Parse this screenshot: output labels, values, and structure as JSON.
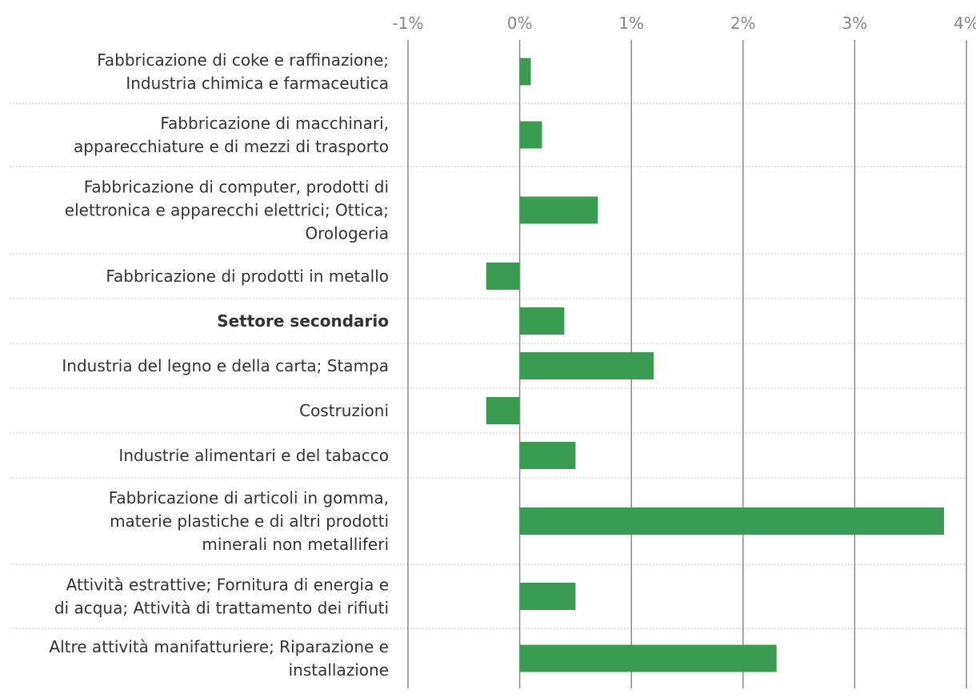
{
  "chart_data": {
    "type": "bar",
    "orientation": "horizontal",
    "bar_color": "#3a9c50",
    "xlim": [
      -1,
      4
    ],
    "ticks": [
      {
        "value": -1,
        "label": "-1%"
      },
      {
        "value": 0,
        "label": "0%"
      },
      {
        "value": 1,
        "label": "1%"
      },
      {
        "value": 2,
        "label": "2%"
      },
      {
        "value": 3,
        "label": "3%"
      },
      {
        "value": 4,
        "label": "4%"
      }
    ],
    "categories": [
      {
        "lines": [
          "Fabbricazione di coke e raffinazione;",
          "Industria chimica e farmaceutica"
        ],
        "value": 0.1,
        "bold": false
      },
      {
        "lines": [
          "Fabbricazione di macchinari,",
          "apparecchiature e di mezzi di trasporto"
        ],
        "value": 0.2,
        "bold": false
      },
      {
        "lines": [
          "Fabbricazione di computer, prodotti di",
          "elettronica e apparecchi elettrici; Ottica;",
          "Orologeria"
        ],
        "value": 0.7,
        "bold": false
      },
      {
        "lines": [
          "Fabbricazione di prodotti in metallo"
        ],
        "value": -0.3,
        "bold": false
      },
      {
        "lines": [
          "Settore secondario"
        ],
        "value": 0.4,
        "bold": true
      },
      {
        "lines": [
          "Industria del legno e della carta; Stampa"
        ],
        "value": 1.2,
        "bold": false
      },
      {
        "lines": [
          "Costruzioni"
        ],
        "value": -0.3,
        "bold": false
      },
      {
        "lines": [
          "Industrie alimentari e del tabacco"
        ],
        "value": 0.5,
        "bold": false
      },
      {
        "lines": [
          "Fabbricazione di articoli in gomma,",
          "materie plastiche e di altri prodotti",
          "minerali non metalliferi"
        ],
        "value": 3.8,
        "bold": false
      },
      {
        "lines": [
          "Attività estrattive; Fornitura di energia e",
          "di acqua; Attività di trattamento dei rifiuti"
        ],
        "value": 0.5,
        "bold": false
      },
      {
        "lines": [
          "Altre attività manifatturiere; Riparazione e",
          "installazione"
        ],
        "value": 2.3,
        "bold": false
      }
    ]
  }
}
